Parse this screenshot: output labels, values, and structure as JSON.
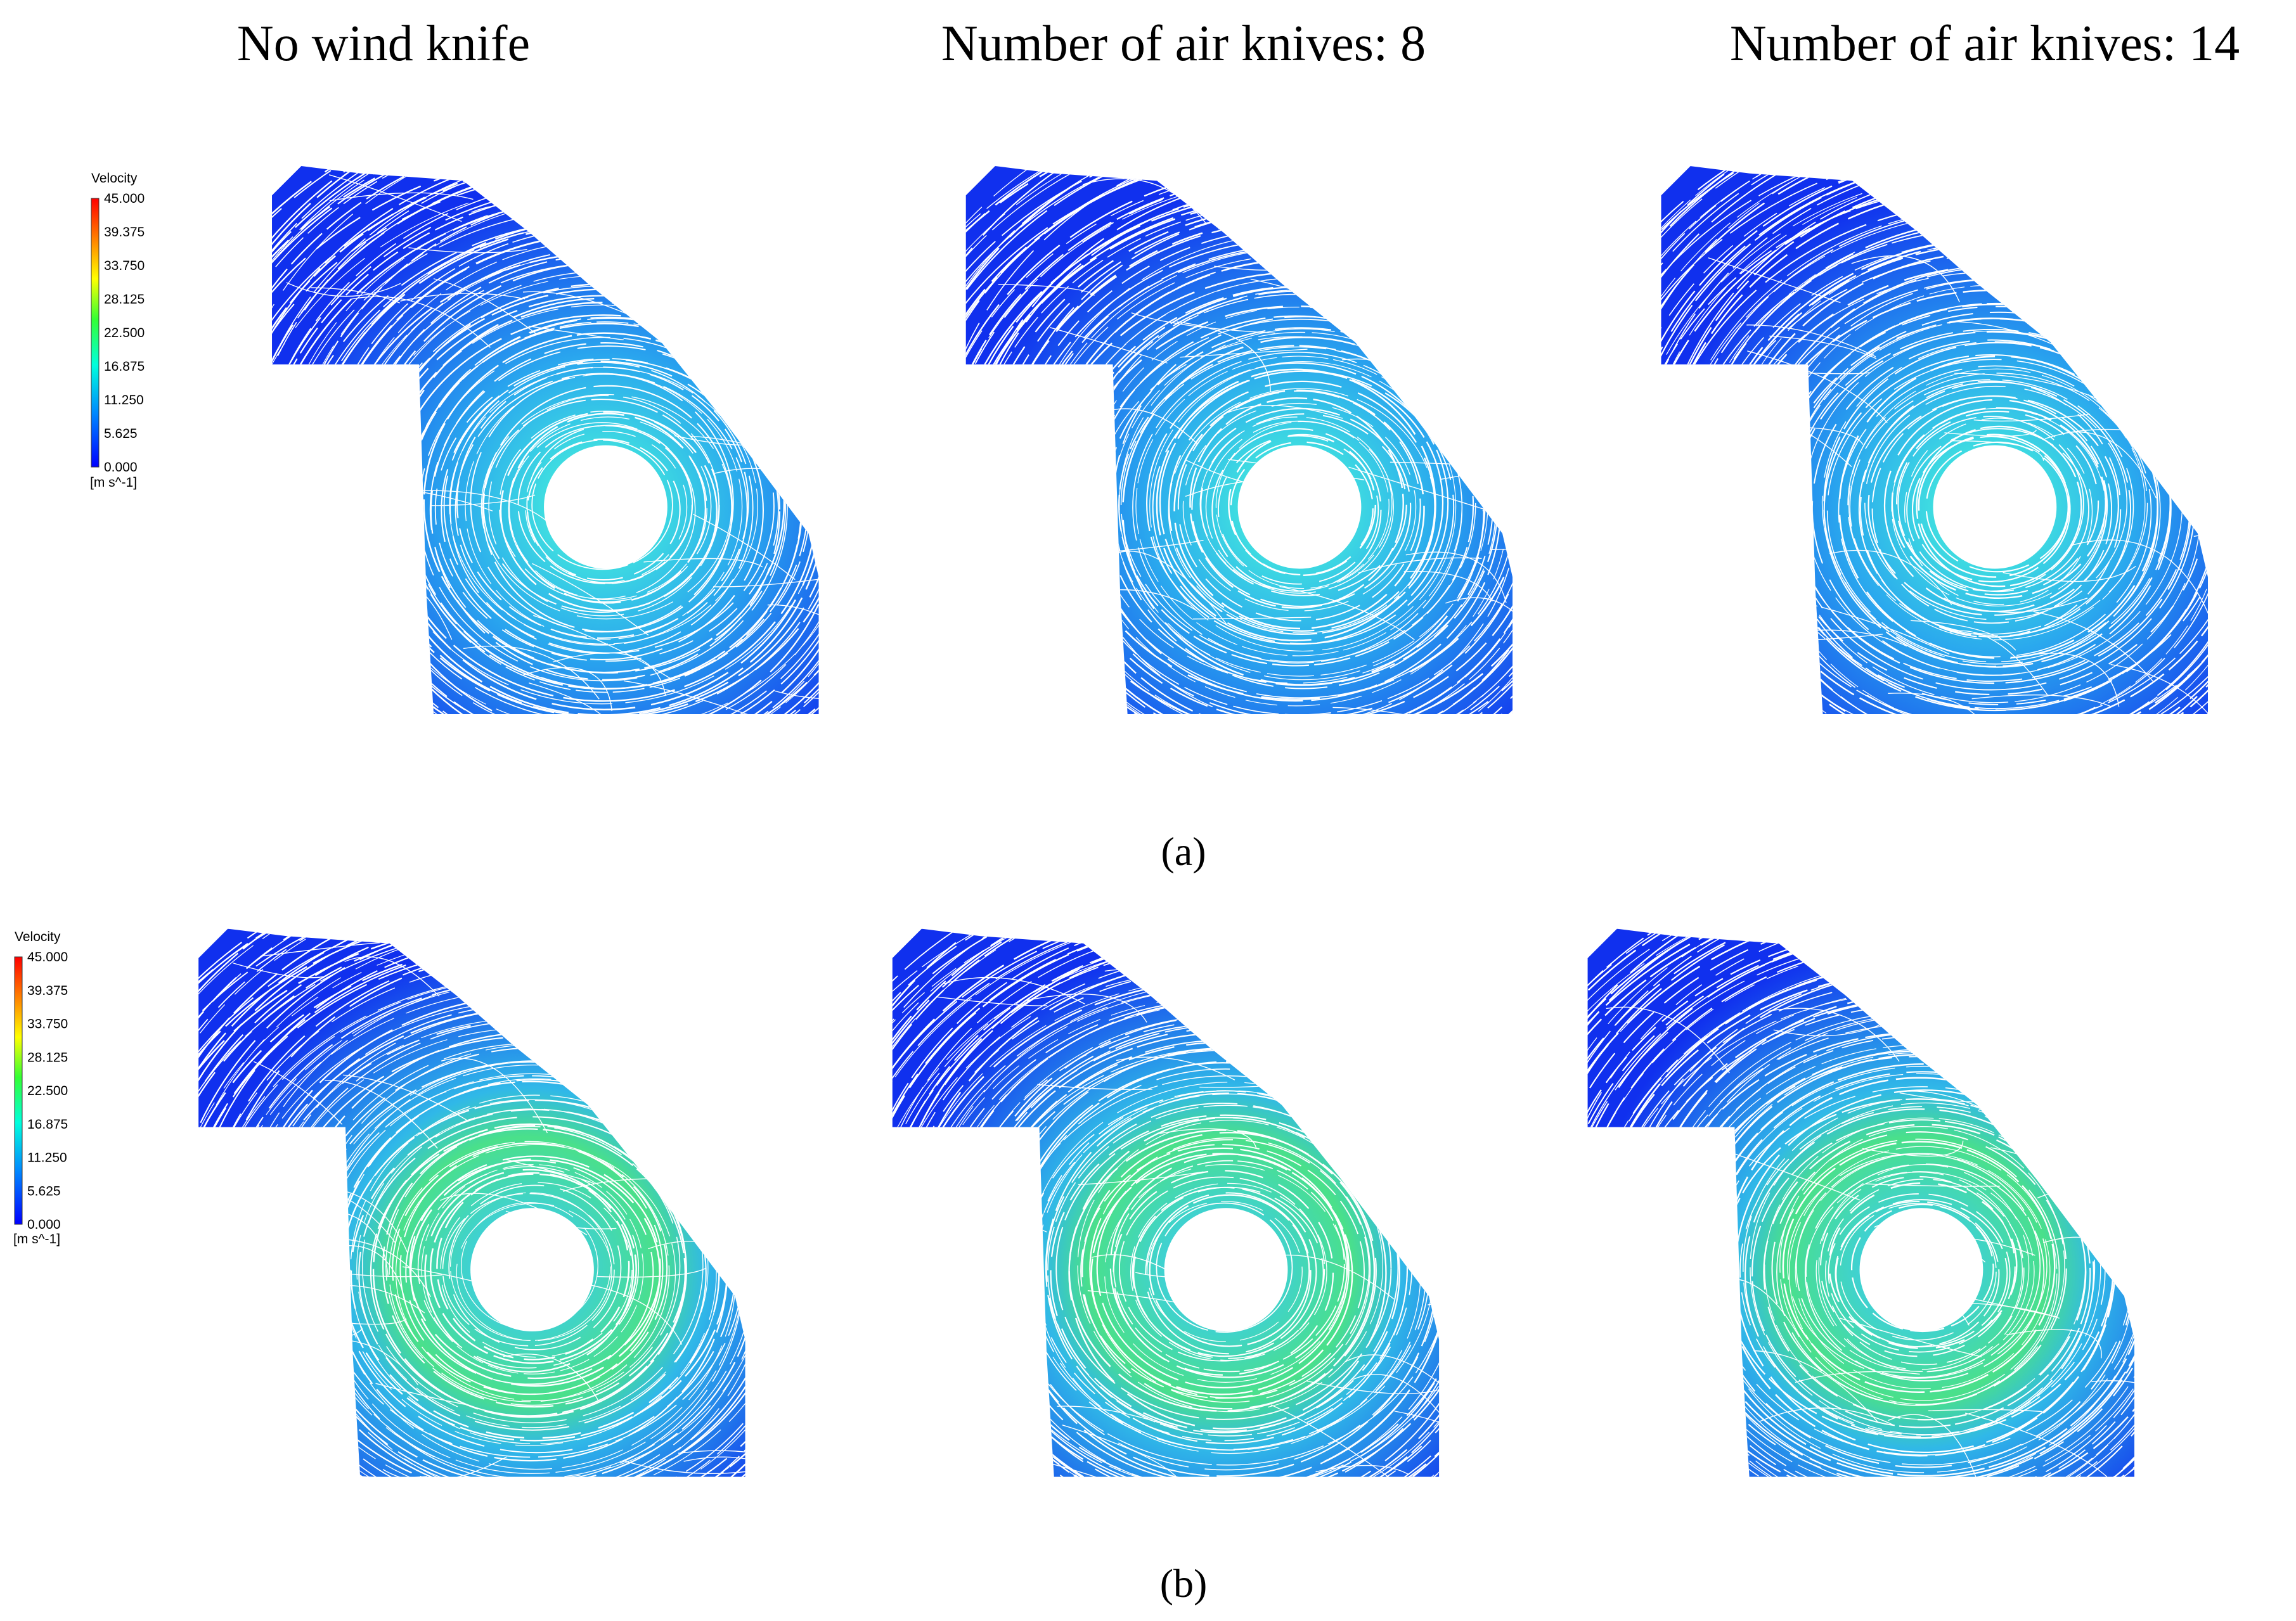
{
  "column_titles": [
    "No wind knife",
    "Number of air knives: 8",
    "Number of air knives: 14"
  ],
  "panels": [
    {
      "label": "(a)",
      "legend": {
        "title": "Velocity",
        "ticks": [
          "45.000",
          "39.375",
          "33.750",
          "28.125",
          "22.500",
          "16.875",
          "11.250",
          "5.625",
          "0.000"
        ],
        "unit": "[m s^-1]"
      }
    },
    {
      "label": "(b)",
      "legend": {
        "title": "Velocity",
        "ticks": [
          "45.000",
          "39.375",
          "33.750",
          "28.125",
          "22.500",
          "16.875",
          "11.250",
          "5.625",
          "0.000"
        ],
        "unit": "[m s^-1]"
      }
    }
  ]
}
